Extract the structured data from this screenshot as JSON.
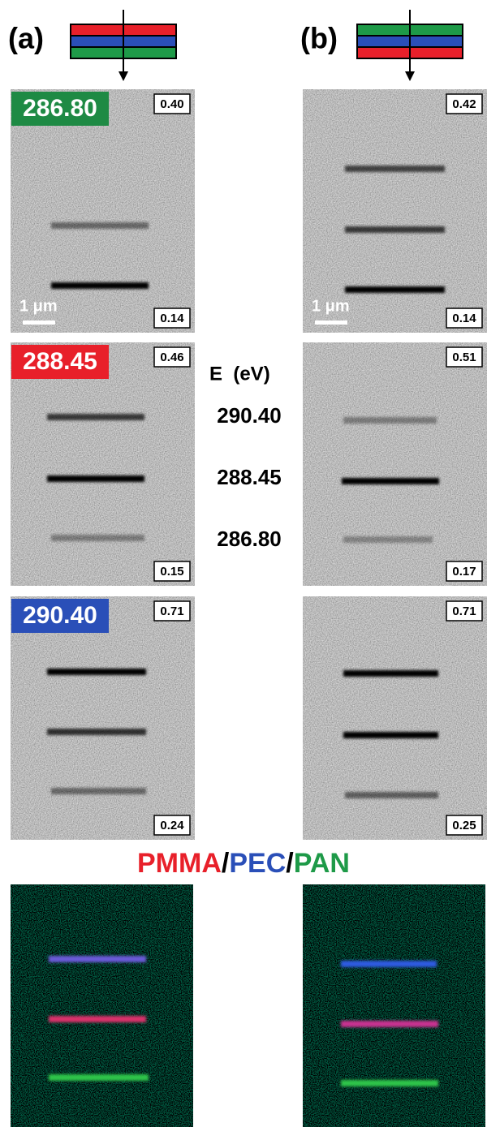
{
  "panels": [
    {
      "label": "(a)",
      "images": [
        {
          "energy": "286.80",
          "max": "0.40",
          "min": "0.14",
          "scale_bar": "1 μm"
        },
        {
          "energy": "288.45",
          "max": "0.46",
          "min": "0.15"
        },
        {
          "energy": "290.40",
          "max": "0.71",
          "min": "0.24"
        }
      ]
    },
    {
      "label": "(b)",
      "images": [
        {
          "max": "0.42",
          "min": "0.14",
          "scale_bar": "1 μm"
        },
        {
          "max": "0.51",
          "min": "0.17"
        },
        {
          "max": "0.71",
          "min": "0.25"
        }
      ]
    }
  ],
  "energy_legend": {
    "title": "E  (eV)",
    "values": [
      "290.40",
      "288.45",
      "286.80"
    ]
  },
  "composite_title": [
    "PMMA",
    "/",
    "PEC",
    "/",
    "PAN"
  ]
}
